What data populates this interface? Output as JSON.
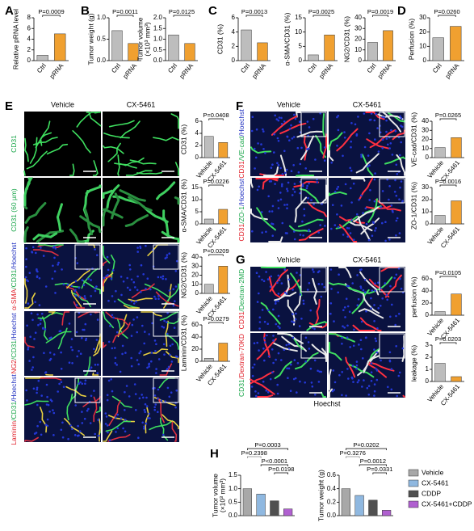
{
  "panels": [
    "A",
    "B",
    "C",
    "D",
    "E",
    "F",
    "G",
    "H"
  ],
  "images": {
    "E": {
      "columns": [
        "Vehicle",
        "CX-5461"
      ],
      "rows": [
        {
          "parts": [
            "CD31"
          ],
          "colors": [
            "#1aa64a"
          ]
        },
        {
          "parts": [
            "CD31 (60 µm)"
          ],
          "colors": [
            "#1aa64a"
          ]
        },
        {
          "parts": [
            "α-SMA",
            "/CD31",
            "/Hoechst"
          ],
          "colors": [
            "#e0202a",
            "#1aa64a",
            "#2030c0"
          ]
        },
        {
          "parts": [
            "NG2",
            "/CD31",
            "/Hoechst"
          ],
          "colors": [
            "#e0202a",
            "#1aa64a",
            "#2030c0"
          ]
        },
        {
          "parts": [
            "Laminin",
            "/CD31",
            "/Hoechst"
          ],
          "colors": [
            "#e0202a",
            "#1aa64a",
            "#2030c0"
          ]
        }
      ]
    },
    "F": {
      "columns": [
        "Vehicle",
        "CX-5461"
      ],
      "rows": [
        {
          "parts": [
            "CD31",
            "/VE-cad",
            "/Hoechst"
          ],
          "colors": [
            "#e0202a",
            "#1aa64a",
            "#2030c0"
          ]
        },
        {
          "parts": [
            "CD31",
            "/ZO-1",
            "/Hoechst"
          ],
          "colors": [
            "#e0202a",
            "#1aa64a",
            "#2030c0"
          ]
        }
      ]
    },
    "G": {
      "columns": [
        "Vehicle",
        "CX-5461"
      ],
      "rows": [
        {
          "parts": [
            "CD31",
            "/Dextran-2MD"
          ],
          "colors": [
            "#e0202a",
            "#1aa64a"
          ]
        },
        {
          "parts": [
            "CD31",
            "/Dextran-70KD"
          ],
          "colors": [
            "#1aa64a",
            "#e0202a"
          ]
        }
      ],
      "footer": "Hoechst"
    }
  },
  "chart_data": [
    {
      "type": "bar",
      "ylabel": "Relative pRNA level",
      "categories": [
        "Ctrl",
        "pRNA"
      ],
      "values": [
        1,
        5
      ],
      "colors": [
        "#bdbdbd",
        "#f0a030"
      ],
      "ylim": [
        0,
        8
      ],
      "yticks": [
        0,
        2,
        4,
        6,
        8
      ],
      "annotations": [
        "P=0.0009"
      ]
    },
    {
      "type": "bar",
      "ylabel": "Tumor weight (g)",
      "categories": [
        "Ctrl",
        "pRNA"
      ],
      "values": [
        0.7,
        0.4
      ],
      "colors": [
        "#bdbdbd",
        "#f0a030"
      ],
      "ylim": [
        0,
        1
      ],
      "yticks": [
        {
          "value": 0,
          "label": "0.0"
        },
        {
          "value": 0.5,
          "label": "0.5"
        },
        {
          "value": 1,
          "label": "1.0"
        }
      ],
      "annotations": [
        "P=0.0011"
      ]
    },
    {
      "type": "bar",
      "ylabel": [
        "Tumor volume",
        "(×10³ mm³)"
      ],
      "categories": [
        "Ctrl",
        "pRNA"
      ],
      "values": [
        1.2,
        0.8
      ],
      "colors": [
        "#bdbdbd",
        "#f0a030"
      ],
      "ylim": [
        0,
        2
      ],
      "yticks": [
        {
          "value": 0,
          "label": "0.0"
        },
        0.5,
        {
          "value": 1,
          "label": "1.0"
        },
        1.5,
        {
          "value": 2,
          "label": "2.0"
        }
      ],
      "annotations": [
        "P=0.0125"
      ]
    },
    {
      "type": "bar",
      "ylabel": "CD31 (%)",
      "categories": [
        "Ctrl",
        "pRNA"
      ],
      "values": [
        4.3,
        2.5
      ],
      "colors": [
        "#bdbdbd",
        "#f0a030"
      ],
      "ylim": [
        0,
        6
      ],
      "yticks": [
        0,
        2,
        4,
        6
      ],
      "annotations": [
        "P=0.0013"
      ]
    },
    {
      "type": "bar",
      "ylabel": "α-SMA/CD31 (%)",
      "categories": [
        "Ctrl",
        "pRNA"
      ],
      "values": [
        2,
        9
      ],
      "colors": [
        "#bdbdbd",
        "#f0a030"
      ],
      "ylim": [
        0,
        15
      ],
      "yticks": [
        0,
        5,
        10,
        15
      ],
      "annotations": [
        "P=0.0025"
      ]
    },
    {
      "type": "bar",
      "ylabel": "NG2/CD31 (%)",
      "categories": [
        "Ctrl",
        "pRNA"
      ],
      "values": [
        17,
        28
      ],
      "colors": [
        "#bdbdbd",
        "#f0a030"
      ],
      "ylim": [
        0,
        40
      ],
      "yticks": [
        0,
        10,
        20,
        30,
        40
      ],
      "annotations": [
        "P=0.0019"
      ]
    },
    {
      "type": "bar",
      "ylabel": "Perfusion (%)",
      "categories": [
        "Ctrl",
        "pRNA"
      ],
      "values": [
        16,
        24
      ],
      "colors": [
        "#bdbdbd",
        "#f0a030"
      ],
      "ylim": [
        0,
        30
      ],
      "yticks": [
        0,
        10,
        20,
        30
      ],
      "annotations": [
        "P=0.0260"
      ]
    },
    {
      "type": "bar",
      "ylabel": "CD31 (%)",
      "categories": [
        "Vehicle",
        "CX-5461"
      ],
      "values": [
        3.5,
        2.5
      ],
      "colors": [
        "#bdbdbd",
        "#f0a030"
      ],
      "ylim": [
        0,
        6
      ],
      "yticks": [
        0,
        2,
        4,
        6
      ],
      "annotations": [
        "P=0.0408"
      ]
    },
    {
      "type": "bar",
      "ylabel": "α-SMA/CD31 (%)",
      "categories": [
        "Vehicle",
        "CX-5461"
      ],
      "values": [
        2,
        6
      ],
      "colors": [
        "#bdbdbd",
        "#f0a030"
      ],
      "ylim": [
        0,
        15
      ],
      "yticks": [
        0,
        5,
        10,
        15
      ],
      "annotations": [
        "P=0.0226"
      ]
    },
    {
      "type": "bar",
      "ylabel": "NG2/CD31 (%)",
      "categories": [
        "Vehicle",
        "CX-5461"
      ],
      "values": [
        10,
        30
      ],
      "colors": [
        "#bdbdbd",
        "#f0a030"
      ],
      "ylim": [
        0,
        40
      ],
      "yticks": [
        0,
        10,
        20,
        30,
        40
      ],
      "annotations": [
        "P=0.0209"
      ]
    },
    {
      "type": "bar",
      "ylabel": "Laminin/CD31 (%)",
      "categories": [
        "Vehicle",
        "CX-5461"
      ],
      "values": [
        5,
        30
      ],
      "colors": [
        "#bdbdbd",
        "#f0a030"
      ],
      "ylim": [
        0,
        60
      ],
      "yticks": [
        0,
        20,
        40,
        60
      ],
      "annotations": [
        "P=0.0279"
      ]
    },
    {
      "type": "bar",
      "ylabel": "VE-cad/CD31 (%)",
      "categories": [
        "Vehicle",
        "CX-5461"
      ],
      "values": [
        11,
        22
      ],
      "colors": [
        "#bdbdbd",
        "#f0a030"
      ],
      "ylim": [
        0,
        40
      ],
      "yticks": [
        0,
        10,
        20,
        30,
        40
      ],
      "annotations": [
        "P=0.0265"
      ]
    },
    {
      "type": "bar",
      "ylabel": "ZO-1/CD31 (%)",
      "categories": [
        "Vehicle",
        "CX-5461"
      ],
      "values": [
        7,
        19
      ],
      "colors": [
        "#bdbdbd",
        "#f0a030"
      ],
      "ylim": [
        0,
        30
      ],
      "yticks": [
        0,
        10,
        20,
        30
      ],
      "annotations": [
        "P=0.0016"
      ]
    },
    {
      "type": "bar",
      "ylabel": "perfusion (%)",
      "categories": [
        "Vehicle",
        "CX-5461"
      ],
      "values": [
        6,
        35
      ],
      "colors": [
        "#bdbdbd",
        "#f0a030"
      ],
      "ylim": [
        0,
        60
      ],
      "yticks": [
        0,
        20,
        40,
        60
      ],
      "annotations": [
        "P=0.0105"
      ]
    },
    {
      "type": "bar",
      "ylabel": "leakage (%)",
      "categories": [
        "Vehicle",
        "CX-5461"
      ],
      "values": [
        1.5,
        0.4
      ],
      "colors": [
        "#bdbdbd",
        "#f0a030"
      ],
      "ylim": [
        0,
        3
      ],
      "yticks": [
        0,
        1,
        2,
        3
      ],
      "annotations": [
        "P=0.0203"
      ]
    },
    {
      "type": "bar",
      "ylabel": [
        "Tumor volume",
        "(×10³ mm³)"
      ],
      "categories": [
        "Vehicle",
        "CX-5461",
        "CDDP",
        "CX-5461+CDDP"
      ],
      "values": [
        1.0,
        0.8,
        0.55,
        0.25
      ],
      "colors": [
        "#a8a8a8",
        "#8fb8e0",
        "#505050",
        "#b060d0"
      ],
      "ylim": [
        0,
        1.5
      ],
      "yticks": [
        {
          "value": 0,
          "label": "0.0"
        },
        0.5,
        {
          "value": 1,
          "label": "1.0"
        },
        1.5
      ],
      "annotations": [
        "P=0.0003",
        "P=0.2398",
        "P<0.0001",
        "P=0.0198"
      ],
      "annotation_colors": [
        "#000000",
        "#888888",
        "#000000",
        "#000000"
      ],
      "legend": true
    },
    {
      "type": "bar",
      "ylabel": "Tumor weight (g)",
      "categories": [
        "Vehicle",
        "CX-5461",
        "CDDP",
        "CX-5461+CDDP"
      ],
      "values": [
        0.4,
        0.3,
        0.23,
        0.08
      ],
      "colors": [
        "#a8a8a8",
        "#8fb8e0",
        "#505050",
        "#b060d0"
      ],
      "ylim": [
        0,
        0.6
      ],
      "yticks": [
        {
          "value": 0,
          "label": "0.0"
        },
        0.2,
        0.4,
        0.6
      ],
      "annotations": [
        "P=0.0202",
        "P=0.3276",
        "P=0.0012",
        "P=0.0331"
      ],
      "annotation_colors": [
        "#000000",
        "#888888",
        "#000000",
        "#000000"
      ]
    }
  ]
}
